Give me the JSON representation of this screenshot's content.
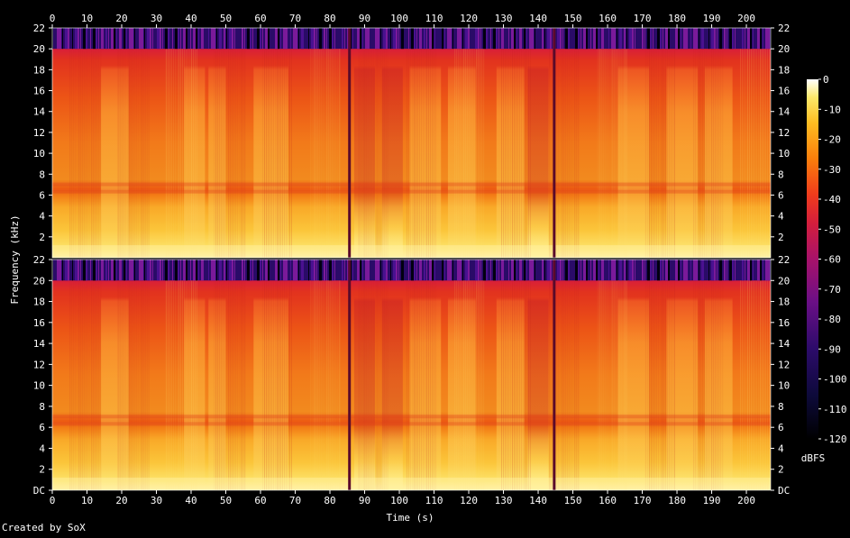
{
  "chart_data": {
    "type": "heatmap",
    "xlabel": "Time (s)",
    "ylabel": "Frequency (kHz)",
    "x_ticks": [
      0,
      10,
      20,
      30,
      40,
      50,
      60,
      70,
      80,
      90,
      100,
      110,
      120,
      130,
      140,
      150,
      160,
      170,
      180,
      190,
      200
    ],
    "x_range": [
      0,
      207
    ],
    "channels": [
      {
        "y_ticks": [
          "2",
          "4",
          "6",
          "8",
          "10",
          "12",
          "14",
          "16",
          "18",
          "20",
          "22"
        ],
        "y_range_khz": [
          0,
          22
        ]
      },
      {
        "y_ticks": [
          "DC",
          "2",
          "4",
          "6",
          "8",
          "10",
          "12",
          "14",
          "16",
          "18",
          "20",
          "22"
        ],
        "y_range_khz": [
          0,
          22
        ]
      }
    ],
    "colorbar": {
      "label": "dBFS",
      "ticks": [
        0,
        -10,
        -20,
        -30,
        -40,
        -50,
        -60,
        -70,
        -80,
        -90,
        -100,
        -110,
        -120
      ],
      "range": [
        -120,
        0
      ]
    },
    "lowpass_cutoff_khz": 20,
    "segment_boundaries_s": [
      85.5,
      144.5
    ],
    "loud_sections_s": [
      [
        14,
        22
      ],
      [
        38,
        44
      ],
      [
        45,
        50
      ],
      [
        58,
        68
      ],
      [
        103,
        112
      ],
      [
        114,
        122
      ],
      [
        128,
        136
      ],
      [
        163,
        172
      ],
      [
        177,
        186
      ],
      [
        188,
        196
      ]
    ],
    "quiet_sections_s": [
      [
        87,
        93
      ],
      [
        95,
        101
      ],
      [
        137,
        143
      ]
    ]
  },
  "footer": {
    "credit": "Created by SoX"
  }
}
